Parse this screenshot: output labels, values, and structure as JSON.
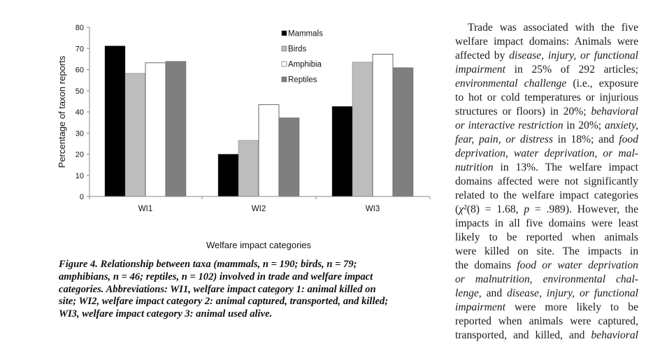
{
  "chart_data": {
    "type": "bar",
    "categories": [
      "WI1",
      "WI2",
      "WI3"
    ],
    "series": [
      {
        "name": "Mammals",
        "values": [
          71.2,
          20.0,
          42.6
        ],
        "color": "#000000"
      },
      {
        "name": "Birds",
        "values": [
          58.2,
          26.5,
          63.5
        ],
        "color": "#bdbdbd"
      },
      {
        "name": "Amphibia",
        "values": [
          63.2,
          43.4,
          67.3
        ],
        "color": "#ffffff"
      },
      {
        "name": "Reptiles",
        "values": [
          63.9,
          37.2,
          60.9
        ],
        "color": "#7f7f7f"
      }
    ],
    "xlabel": "Welfare impact categories",
    "ylabel": "Percentage of taxon reports",
    "ylim": [
      0,
      80
    ],
    "yticks": [
      "0",
      "10",
      "20",
      "30",
      "40",
      "50",
      "60",
      "70",
      "80"
    ],
    "grid": false,
    "legend": "top-right"
  },
  "caption": [
    "Figure 4. Relationship between taxa (mammals, n = 190; birds, n = 79;",
    "amphibians, n = 46; reptiles, n = 102) involved in trade and welfare impact",
    "categories. Abbreviations: WI1, welfare impact category 1: animal killed on",
    "site; WI2, welfare impact category 2: animal captured, transported, and killed;",
    "WI3, welfare impact category 3: animal used alive."
  ],
  "body_lines": [
    [
      {
        "t": "Trade was associated with the five"
      }
    ],
    [
      {
        "t": "welfare impact domains: Animals were"
      }
    ],
    [
      {
        "t": "affected by "
      },
      {
        "t": "disease, injury, or functional",
        "i": true
      }
    ],
    [
      {
        "t": "impairment",
        "i": true
      },
      {
        "t": " in 25% of 292 articles;"
      }
    ],
    [
      {
        "t": "environmental challenge",
        "i": true
      },
      {
        "t": " (i.e., exposure"
      }
    ],
    [
      {
        "t": "to hot or cold temperatures or injurious"
      }
    ],
    [
      {
        "t": "structures or floors) in 20%; "
      },
      {
        "t": "behavioral",
        "i": true
      }
    ],
    [
      {
        "t": "or interactive restriction",
        "i": true
      },
      {
        "t": " in 20%; "
      },
      {
        "t": "anxiety,",
        "i": true
      }
    ],
    [
      {
        "t": "fear, pain, or distress",
        "i": true
      },
      {
        "t": " in 18%; and "
      },
      {
        "t": "food",
        "i": true
      }
    ],
    [
      {
        "t": "deprivation, water deprivation, or mal-",
        "i": true
      }
    ],
    [
      {
        "t": "nutrition",
        "i": true
      },
      {
        "t": " in 13%. The welfare impact"
      }
    ],
    [
      {
        "t": "domains affected were not significantly"
      }
    ],
    [
      {
        "t": "related to the welfare impact categories"
      }
    ],
    [
      {
        "t": "("
      },
      {
        "t": "χ",
        "i": true
      },
      {
        "t": "²(8) = 1.68, "
      },
      {
        "t": "p",
        "i": true
      },
      {
        "t": " = .989). However, the"
      }
    ],
    [
      {
        "t": "impacts in all five domains were least"
      }
    ],
    [
      {
        "t": "likely to be reported when animals"
      }
    ],
    [
      {
        "t": "were killed on site. The impacts in"
      }
    ],
    [
      {
        "t": "the domains "
      },
      {
        "t": "food or water deprivation",
        "i": true
      }
    ],
    [
      {
        "t": "or malnutrition",
        "i": true
      },
      {
        "t": ", "
      },
      {
        "t": "environmental chal-",
        "i": true
      }
    ],
    [
      {
        "t": "lenge",
        "i": true
      },
      {
        "t": ", and "
      },
      {
        "t": "disease, injury, or functional",
        "i": true
      }
    ],
    [
      {
        "t": "impairment",
        "i": true
      },
      {
        "t": " were more likely to be"
      }
    ],
    [
      {
        "t": "reported when animals were captured,"
      }
    ],
    [
      {
        "t": "transported, and killed, and "
      },
      {
        "t": "behavioral",
        "i": true
      }
    ]
  ]
}
